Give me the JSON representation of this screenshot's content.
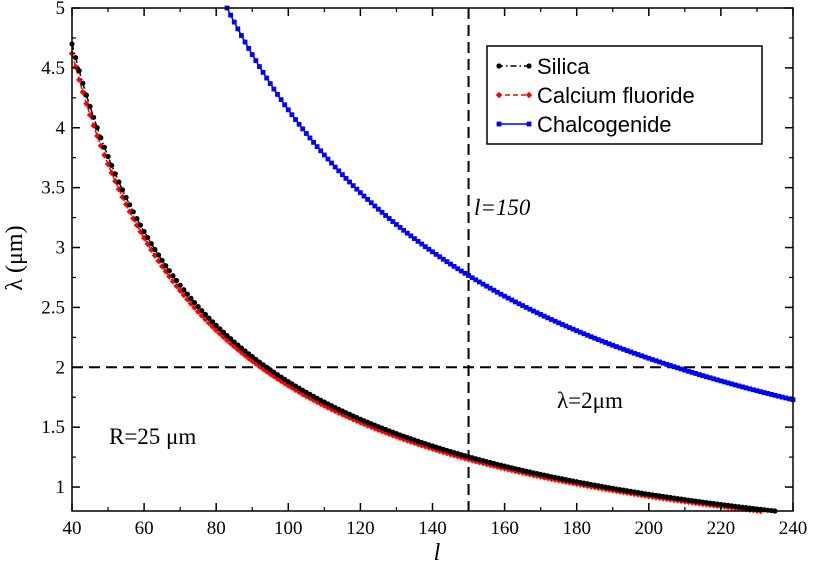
{
  "chart_data": {
    "type": "line",
    "title": "",
    "xlabel": "l",
    "ylabel": "λ (μm)",
    "xlim": [
      40,
      240
    ],
    "ylim": [
      0.8,
      5
    ],
    "xticks": [
      "40",
      "60",
      "80",
      "100",
      "120",
      "140",
      "160",
      "180",
      "200",
      "220",
      "240"
    ],
    "yticks": [
      "1",
      "1.5",
      "2",
      "2.5",
      "3",
      "3.5",
      "4",
      "4.5",
      "5"
    ],
    "series": [
      {
        "name": "Silica",
        "color": "#000000",
        "marker": "circle",
        "dash": "dash-dot",
        "k": 188,
        "x_start": 40,
        "x_end": 240
      },
      {
        "name": "Calcium fluoride",
        "color": "#ff0000",
        "marker": "diamond",
        "dash": "dashed",
        "k": 184.8,
        "x_start": 40,
        "x_end": 240
      },
      {
        "name": "Chalcogenide",
        "color": "#0000ff",
        "marker": "square",
        "dash": "solid",
        "k": 415,
        "x_start": 83,
        "x_end": 240
      }
    ],
    "series_model": "y = k / x",
    "reference_lines": [
      {
        "orientation": "horizontal",
        "value": 2,
        "label": "λ=2μm"
      },
      {
        "orientation": "vertical",
        "value": 150,
        "label": "l=150"
      }
    ],
    "annotations": [
      "R=25 μm"
    ],
    "legend": "top-right"
  }
}
